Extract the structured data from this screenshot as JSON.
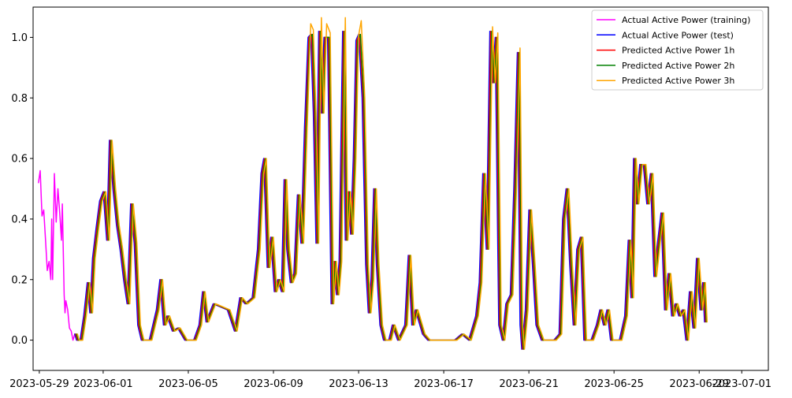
{
  "chart_data": {
    "type": "line",
    "title": "",
    "xlabel": "",
    "ylabel": "",
    "x_type": "date",
    "xlim": [
      "2023-05-28 17:00",
      "2023-07-02 06:00"
    ],
    "ylim": [
      -0.1,
      1.1
    ],
    "xticks": [
      "2023-05-29",
      "2023-06-01",
      "2023-06-05",
      "2023-06-09",
      "2023-06-13",
      "2023-06-17",
      "2023-06-21",
      "2023-06-25",
      "2023-06-29",
      "2023-07-01"
    ],
    "yticks": [
      0.0,
      0.2,
      0.4,
      0.6,
      0.8,
      1.0
    ],
    "ytick_labels": [
      "0.0",
      "0.2",
      "0.4",
      "0.6",
      "0.8",
      "1.0"
    ],
    "grid": false,
    "legend_position": "top-right",
    "series": [
      {
        "name": "Actual Active Power (training)",
        "color": "#ff00ff",
        "points": [
          [
            "2023-05-28 23:00",
            0.52
          ],
          [
            "2023-05-29 01:00",
            0.56
          ],
          [
            "2023-05-29 03:00",
            0.41
          ],
          [
            "2023-05-29 05:00",
            0.43
          ],
          [
            "2023-05-29 07:00",
            0.33
          ],
          [
            "2023-05-29 09:00",
            0.23
          ],
          [
            "2023-05-29 11:00",
            0.26
          ],
          [
            "2023-05-29 13:00",
            0.2
          ],
          [
            "2023-05-29 14:00",
            0.4
          ],
          [
            "2023-05-29 15:00",
            0.2
          ],
          [
            "2023-05-29 17:00",
            0.55
          ],
          [
            "2023-05-29 19:00",
            0.39
          ],
          [
            "2023-05-29 21:00",
            0.5
          ],
          [
            "2023-05-29 23:00",
            0.42
          ],
          [
            "2023-05-30 01:00",
            0.33
          ],
          [
            "2023-05-30 02:00",
            0.45
          ],
          [
            "2023-05-30 04:00",
            0.15
          ],
          [
            "2023-05-30 05:00",
            0.09
          ],
          [
            "2023-05-30 06:00",
            0.13
          ],
          [
            "2023-05-30 08:00",
            0.1
          ],
          [
            "2023-05-30 10:00",
            0.04
          ],
          [
            "2023-05-30 12:00",
            0.03
          ],
          [
            "2023-05-30 14:00",
            0.0
          ],
          [
            "2023-05-30 16:00",
            0.02
          ]
        ]
      },
      {
        "name": "Actual Active Power (test)",
        "color": "#0000ff",
        "points": [
          [
            "2023-05-30 16:00",
            0.02
          ],
          [
            "2023-05-30 18:00",
            0.0
          ],
          [
            "2023-05-30 22:00",
            0.0
          ],
          [
            "2023-05-31 02:00",
            0.08
          ],
          [
            "2023-05-31 06:00",
            0.19
          ],
          [
            "2023-05-31 09:00",
            0.09
          ],
          [
            "2023-05-31 12:00",
            0.27
          ],
          [
            "2023-05-31 16:00",
            0.37
          ],
          [
            "2023-05-31 20:00",
            0.46
          ],
          [
            "2023-06-01 00:00",
            0.49
          ],
          [
            "2023-06-01 04:00",
            0.33
          ],
          [
            "2023-06-01 07:00",
            0.66
          ],
          [
            "2023-06-01 11:00",
            0.5
          ],
          [
            "2023-06-01 15:00",
            0.38
          ],
          [
            "2023-06-01 19:00",
            0.3
          ],
          [
            "2023-06-01 23:00",
            0.2
          ],
          [
            "2023-06-02 03:00",
            0.12
          ],
          [
            "2023-06-02 07:00",
            0.45
          ],
          [
            "2023-06-02 11:00",
            0.32
          ],
          [
            "2023-06-02 15:00",
            0.05
          ],
          [
            "2023-06-02 19:00",
            0.0
          ],
          [
            "2023-06-03 04:00",
            0.0
          ],
          [
            "2023-06-03 12:00",
            0.1
          ],
          [
            "2023-06-03 16:00",
            0.2
          ],
          [
            "2023-06-03 20:00",
            0.05
          ],
          [
            "2023-06-04 00:00",
            0.08
          ],
          [
            "2023-06-04 06:00",
            0.03
          ],
          [
            "2023-06-04 12:00",
            0.04
          ],
          [
            "2023-06-04 20:00",
            0.0
          ],
          [
            "2023-06-05 06:00",
            0.0
          ],
          [
            "2023-06-05 12:00",
            0.05
          ],
          [
            "2023-06-05 16:00",
            0.16
          ],
          [
            "2023-06-05 20:00",
            0.06
          ],
          [
            "2023-06-06 04:00",
            0.12
          ],
          [
            "2023-06-06 12:00",
            0.11
          ],
          [
            "2023-06-06 20:00",
            0.1
          ],
          [
            "2023-06-07 04:00",
            0.03
          ],
          [
            "2023-06-07 10:00",
            0.14
          ],
          [
            "2023-06-07 16:00",
            0.12
          ],
          [
            "2023-06-08 00:00",
            0.14
          ],
          [
            "2023-06-08 06:00",
            0.3
          ],
          [
            "2023-06-08 10:00",
            0.55
          ],
          [
            "2023-06-08 13:00",
            0.6
          ],
          [
            "2023-06-08 17:00",
            0.24
          ],
          [
            "2023-06-08 21:00",
            0.34
          ],
          [
            "2023-06-09 01:00",
            0.16
          ],
          [
            "2023-06-09 05:00",
            0.2
          ],
          [
            "2023-06-09 09:00",
            0.16
          ],
          [
            "2023-06-09 12:00",
            0.53
          ],
          [
            "2023-06-09 15:00",
            0.3
          ],
          [
            "2023-06-09 19:00",
            0.19
          ],
          [
            "2023-06-09 23:00",
            0.22
          ],
          [
            "2023-06-10 03:00",
            0.48
          ],
          [
            "2023-06-10 07:00",
            0.32
          ],
          [
            "2023-06-10 11:00",
            0.7
          ],
          [
            "2023-06-10 15:00",
            1.0
          ],
          [
            "2023-06-10 18:00",
            1.01
          ],
          [
            "2023-06-10 21:00",
            0.75
          ],
          [
            "2023-06-11 00:00",
            0.32
          ],
          [
            "2023-06-11 03:00",
            1.02
          ],
          [
            "2023-06-11 06:00",
            0.75
          ],
          [
            "2023-06-11 09:00",
            1.0
          ],
          [
            "2023-06-11 13:00",
            1.0
          ],
          [
            "2023-06-11 17:00",
            0.12
          ],
          [
            "2023-06-11 20:00",
            0.26
          ],
          [
            "2023-06-11 23:00",
            0.15
          ],
          [
            "2023-06-12 02:00",
            0.26
          ],
          [
            "2023-06-12 06:00",
            1.02
          ],
          [
            "2023-06-12 09:00",
            0.33
          ],
          [
            "2023-06-12 12:00",
            0.49
          ],
          [
            "2023-06-12 15:00",
            0.35
          ],
          [
            "2023-06-12 18:00",
            0.6
          ],
          [
            "2023-06-12 21:00",
            0.99
          ],
          [
            "2023-06-13 00:00",
            1.01
          ],
          [
            "2023-06-13 04:00",
            0.8
          ],
          [
            "2023-06-13 08:00",
            0.25
          ],
          [
            "2023-06-13 11:00",
            0.09
          ],
          [
            "2023-06-13 14:00",
            0.2
          ],
          [
            "2023-06-13 17:00",
            0.5
          ],
          [
            "2023-06-13 20:00",
            0.25
          ],
          [
            "2023-06-14 00:00",
            0.05
          ],
          [
            "2023-06-14 04:00",
            0.0
          ],
          [
            "2023-06-14 10:00",
            0.0
          ],
          [
            "2023-06-14 14:00",
            0.05
          ],
          [
            "2023-06-14 20:00",
            0.0
          ],
          [
            "2023-06-15 04:00",
            0.05
          ],
          [
            "2023-06-15 08:00",
            0.28
          ],
          [
            "2023-06-15 12:00",
            0.05
          ],
          [
            "2023-06-15 16:00",
            0.1
          ],
          [
            "2023-06-16 00:00",
            0.02
          ],
          [
            "2023-06-16 06:00",
            0.0
          ],
          [
            "2023-06-16 16:00",
            0.0
          ],
          [
            "2023-06-17 04:00",
            0.0
          ],
          [
            "2023-06-17 12:00",
            0.0
          ],
          [
            "2023-06-17 20:00",
            0.02
          ],
          [
            "2023-06-18 04:00",
            0.0
          ],
          [
            "2023-06-18 12:00",
            0.08
          ],
          [
            "2023-06-18 16:00",
            0.19
          ],
          [
            "2023-06-18 20:00",
            0.55
          ],
          [
            "2023-06-19 00:00",
            0.3
          ],
          [
            "2023-06-19 04:00",
            1.02
          ],
          [
            "2023-06-19 07:00",
            0.85
          ],
          [
            "2023-06-19 10:00",
            1.0
          ],
          [
            "2023-06-19 14:00",
            0.05
          ],
          [
            "2023-06-19 18:00",
            0.0
          ],
          [
            "2023-06-19 22:00",
            0.12
          ],
          [
            "2023-06-20 03:00",
            0.15
          ],
          [
            "2023-06-20 07:00",
            0.5
          ],
          [
            "2023-06-20 11:00",
            0.95
          ],
          [
            "2023-06-20 14:00",
            0.05
          ],
          [
            "2023-06-20 16:00",
            -0.03
          ],
          [
            "2023-06-20 20:00",
            0.1
          ],
          [
            "2023-06-21 00:00",
            0.43
          ],
          [
            "2023-06-21 04:00",
            0.25
          ],
          [
            "2023-06-21 08:00",
            0.05
          ],
          [
            "2023-06-21 14:00",
            0.0
          ],
          [
            "2023-06-22 04:00",
            0.0
          ],
          [
            "2023-06-22 10:00",
            0.02
          ],
          [
            "2023-06-22 14:00",
            0.4
          ],
          [
            "2023-06-22 18:00",
            0.5
          ],
          [
            "2023-06-22 22:00",
            0.25
          ],
          [
            "2023-06-23 02:00",
            0.05
          ],
          [
            "2023-06-23 06:00",
            0.3
          ],
          [
            "2023-06-23 10:00",
            0.34
          ],
          [
            "2023-06-23 14:00",
            0.0
          ],
          [
            "2023-06-23 22:00",
            0.0
          ],
          [
            "2023-06-24 04:00",
            0.05
          ],
          [
            "2023-06-24 08:00",
            0.1
          ],
          [
            "2023-06-24 12:00",
            0.05
          ],
          [
            "2023-06-24 16:00",
            0.1
          ],
          [
            "2023-06-24 20:00",
            0.0
          ],
          [
            "2023-06-25 06:00",
            0.0
          ],
          [
            "2023-06-25 12:00",
            0.08
          ],
          [
            "2023-06-25 16:00",
            0.33
          ],
          [
            "2023-06-25 19:00",
            0.14
          ],
          [
            "2023-06-25 22:00",
            0.6
          ],
          [
            "2023-06-26 01:00",
            0.45
          ],
          [
            "2023-06-26 05:00",
            0.58
          ],
          [
            "2023-06-26 09:00",
            0.58
          ],
          [
            "2023-06-26 13:00",
            0.45
          ],
          [
            "2023-06-26 17:00",
            0.55
          ],
          [
            "2023-06-26 21:00",
            0.21
          ],
          [
            "2023-06-27 01:00",
            0.32
          ],
          [
            "2023-06-27 05:00",
            0.42
          ],
          [
            "2023-06-27 09:00",
            0.1
          ],
          [
            "2023-06-27 13:00",
            0.22
          ],
          [
            "2023-06-27 17:00",
            0.08
          ],
          [
            "2023-06-27 21:00",
            0.12
          ],
          [
            "2023-06-28 01:00",
            0.08
          ],
          [
            "2023-06-28 05:00",
            0.1
          ],
          [
            "2023-06-28 09:00",
            0.0
          ],
          [
            "2023-06-28 13:00",
            0.16
          ],
          [
            "2023-06-28 17:00",
            0.04
          ],
          [
            "2023-06-28 21:00",
            0.27
          ],
          [
            "2023-06-29 01:00",
            0.1
          ],
          [
            "2023-06-29 04:00",
            0.19
          ],
          [
            "2023-06-29 06:00",
            0.06
          ]
        ]
      },
      {
        "name": "Predicted Active Power 1h",
        "color": "#ff0000",
        "shift_hours": 1,
        "offset": 0.0
      },
      {
        "name": "Predicted Active Power 2h",
        "color": "#008000",
        "shift_hours": 2,
        "offset": 0.0
      },
      {
        "name": "Predicted Active Power 3h",
        "color": "#ffa500",
        "shift_hours": 3,
        "offset": 0.015
      }
    ]
  }
}
